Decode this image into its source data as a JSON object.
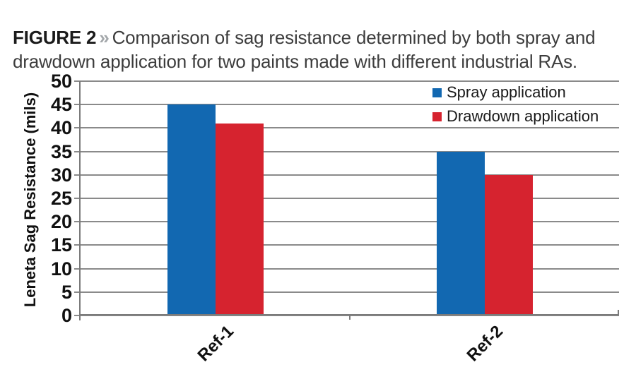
{
  "figure": {
    "label": "FIGURE 2",
    "separator": "»",
    "caption": "Comparison of sag resistance determined by both spray and drawdown application for two paints made with different industrial RAs."
  },
  "chart_data": {
    "type": "bar",
    "categories": [
      "Ref-1",
      "Ref-2"
    ],
    "series": [
      {
        "name": "Spray application",
        "color": "#1268b1",
        "values": [
          45,
          35
        ]
      },
      {
        "name": "Drawdown application",
        "color": "#d6232f",
        "values": [
          41,
          30
        ]
      }
    ],
    "title": "",
    "xlabel": "",
    "ylabel": "Leneta Sag Resistance (mils)",
    "ylim": [
      0,
      50
    ],
    "ytick_step": 5,
    "grid": true,
    "legend_position": "top-right"
  },
  "colors": {
    "bar_blue": "#1268b1",
    "bar_red": "#d6232f",
    "gridline": "#8a8a8a",
    "axis": "#7b7b7b",
    "tick_text": "#111111",
    "caption_text": "#3d3d3d",
    "chevron": "#a3a7aa"
  }
}
